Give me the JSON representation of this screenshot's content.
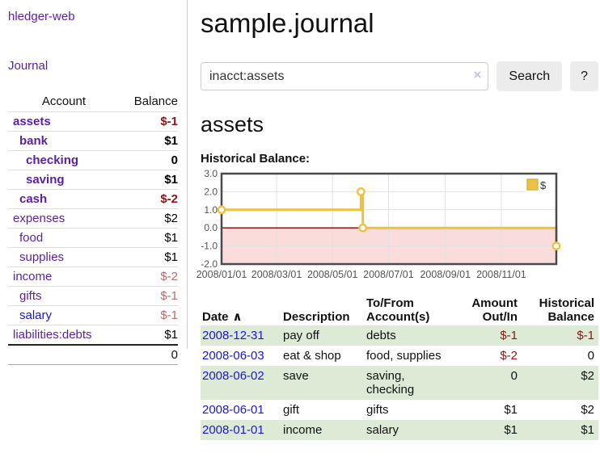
{
  "sidebar": {
    "app_title": "hledger-web",
    "nav_journal": "Journal",
    "accounts": {
      "header_account": "Account",
      "header_balance": "Balance",
      "rows": [
        {
          "name": "assets",
          "balance": "$-1",
          "level": 1,
          "strong": true,
          "neg": "strong"
        },
        {
          "name": "bank",
          "balance": "$1",
          "level": 2,
          "strong": true
        },
        {
          "name": "checking",
          "balance": "0",
          "level": 3,
          "strong": true
        },
        {
          "name": "saving",
          "balance": "$1",
          "level": 3,
          "strong": true
        },
        {
          "name": "cash",
          "balance": "$-2",
          "level": 2,
          "strong": true,
          "neg": "strong"
        },
        {
          "name": "expenses",
          "balance": "$2",
          "level": 1
        },
        {
          "name": "food",
          "balance": "$1",
          "level": 2
        },
        {
          "name": "supplies",
          "balance": "$1",
          "level": 2
        },
        {
          "name": "income",
          "balance": "$-2",
          "level": 1,
          "neg": "soft"
        },
        {
          "name": "gifts",
          "balance": "$-1",
          "level": 2,
          "neg": "soft"
        },
        {
          "name": "salary",
          "balance": "$-1",
          "level": 2,
          "neg": "soft",
          "link": "blue"
        },
        {
          "name": "liabilities:debts",
          "balance": "$1",
          "level": 1
        }
      ],
      "total": "0"
    }
  },
  "main": {
    "title": "sample.journal",
    "search": {
      "value": "inacct:assets",
      "clear_icon": "×",
      "search_button": "Search",
      "help_button": "?"
    },
    "section_title": "assets"
  },
  "chart_data": {
    "type": "line",
    "title": "Historical Balance:",
    "legend": {
      "label": "$",
      "position": "top-right"
    },
    "series": [
      {
        "name": "$",
        "color": "#edc240",
        "style": "step",
        "marker": "open-circle",
        "points": [
          {
            "date": "2008-01-01",
            "value": 1.0
          },
          {
            "date": "2008-06-01",
            "value": 2.0
          },
          {
            "date": "2008-06-03",
            "value": 0.0
          },
          {
            "date": "2008-12-31",
            "value": -1.0
          }
        ]
      }
    ],
    "x_ticks": [
      "2008/01/01",
      "2008/03/01",
      "2008/05/01",
      "2008/07/01",
      "2008/09/01",
      "2008/11/01"
    ],
    "y_ticks": [
      "3.0",
      "2.0",
      "1.0",
      "0.0",
      "-1.0",
      "-2.0"
    ],
    "ylim": [
      -2,
      3
    ],
    "x_range": [
      "2008-01-01",
      "2008-12-31"
    ],
    "grid": true,
    "negative_region_color": "#fbdcdc",
    "zero_line_color": "#8b0000",
    "border_color": "#4a4a4a",
    "grid_color": "#e0e0e0",
    "tick_label_color": "#545454"
  },
  "transactions": {
    "headers": {
      "date": "Date",
      "sort_icon": "∧",
      "description": "Description",
      "accounts": "To/From Account(s)",
      "amount": "Amount Out/In",
      "balance": "Historical Balance"
    },
    "rows": [
      {
        "date": "2008-12-31",
        "description": "pay off",
        "accounts": "debts",
        "amount": "$-1",
        "balance": "$-1",
        "amount_neg": true,
        "balance_neg": true
      },
      {
        "date": "2008-06-03",
        "description": "eat & shop",
        "accounts": "food, supplies",
        "amount": "$-2",
        "balance": "0",
        "amount_neg": true
      },
      {
        "date": "2008-06-02",
        "description": "save",
        "accounts": "saving, checking",
        "amount": "0",
        "balance": "$2"
      },
      {
        "date": "2008-06-01",
        "description": "gift",
        "accounts": "gifts",
        "amount": "$1",
        "balance": "$2"
      },
      {
        "date": "2008-01-01",
        "description": "income",
        "accounts": "salary",
        "amount": "$1",
        "balance": "$1"
      }
    ]
  }
}
